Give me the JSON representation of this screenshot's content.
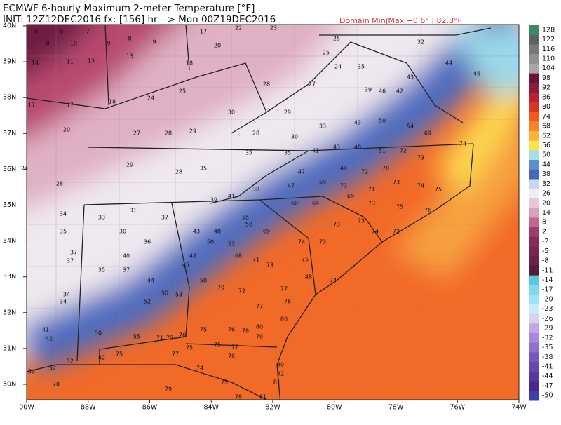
{
  "header": {
    "line1": "ECMWF 6-hourly Maximum 2-meter Temperature [°F]",
    "line2": "INIT: 12Z12DEC2016 fx: [156] hr --> Mon 00Z19DEC2016",
    "domain": "Domain Min|Max −0.6° | 82.8°F"
  },
  "axes": {
    "lat_labels": [
      "40N",
      "39N",
      "38N",
      "37N",
      "36N",
      "35N",
      "34N",
      "33N",
      "32N",
      "31N",
      "30N"
    ],
    "lon_labels": [
      "90W",
      "88W",
      "86W",
      "84W",
      "82W",
      "80W",
      "78W",
      "76W",
      "74W"
    ]
  },
  "colorbar": {
    "labels": [
      128,
      122,
      116,
      110,
      104,
      98,
      92,
      86,
      80,
      74,
      68,
      62,
      56,
      50,
      44,
      38,
      32,
      26,
      20,
      14,
      8,
      2,
      -2,
      -5,
      -8,
      -11,
      -14,
      -17,
      -20,
      -23,
      -26,
      -29,
      -32,
      -35,
      -38,
      -41,
      -44,
      -47,
      -50
    ],
    "colors": [
      "#3c8a66",
      "#606060",
      "#787878",
      "#909090",
      "#a8a8a8",
      "#6b1238",
      "#8e1b3c",
      "#b8222f",
      "#d9342a",
      "#ef5a24",
      "#f7832a",
      "#fbb33a",
      "#fde24a",
      "#a8dcea",
      "#5a8fd0",
      "#4a64b8",
      "#c8d8ea",
      "#f0eef2",
      "#e8c8d8",
      "#d8a0bc",
      "#c06890",
      "#a03c68",
      "#8a2a56",
      "#7a2650",
      "#6a2048",
      "#5a1a40",
      "#58c8e0",
      "#80d8f0",
      "#a0e0f8",
      "#c8ecf8",
      "#d8d0f0",
      "#c0a8e8",
      "#a888dc",
      "#9070d0",
      "#7858c0",
      "#6848b0",
      "#5838a0",
      "#482890",
      "#3a40b0"
    ]
  },
  "stations": [
    6,
    5,
    7,
    8,
    10,
    9,
    8,
    9,
    14,
    11,
    13,
    13,
    17,
    22,
    23,
    25,
    25,
    35,
    20,
    18,
    17,
    17,
    18,
    24,
    25,
    30,
    28,
    29,
    27,
    24,
    39,
    46,
    42,
    43,
    32,
    44,
    46,
    20,
    27,
    28,
    29,
    28,
    30,
    33,
    43,
    50,
    54,
    69,
    74,
    24,
    28,
    29,
    28,
    35,
    35,
    35,
    41,
    43,
    48,
    51,
    72,
    73,
    70,
    72,
    49,
    47,
    59,
    73,
    71,
    73,
    74,
    75,
    47,
    38,
    41,
    39,
    60,
    69,
    69,
    73,
    75,
    76,
    34,
    33,
    31,
    37,
    55,
    58,
    35,
    30,
    43,
    48,
    69,
    73,
    73,
    74,
    72,
    36,
    50,
    53,
    74,
    73,
    37,
    40,
    42,
    68,
    71,
    75,
    37,
    35,
    37,
    45,
    73,
    48,
    44,
    50,
    74,
    34,
    50,
    53,
    70,
    72,
    77,
    34,
    52,
    77,
    76,
    80,
    41,
    50,
    55,
    71,
    75,
    76,
    75,
    76,
    78,
    80,
    42,
    79,
    75,
    75,
    77,
    76,
    75,
    77,
    52,
    82,
    50,
    52,
    74,
    80,
    82,
    75,
    81,
    81,
    78,
    79,
    70
  ]
}
